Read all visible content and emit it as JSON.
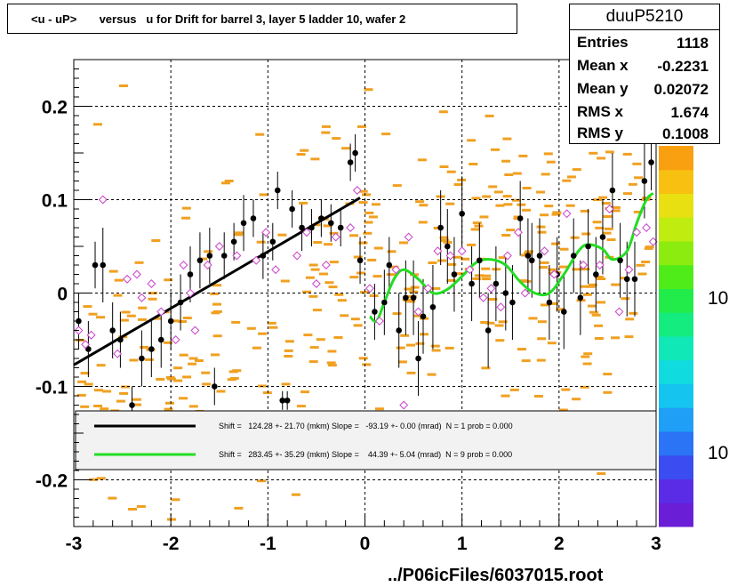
{
  "title": "<u - uP>       versus   u for Drift for barrel 3, layer 5 ladder 10, wafer 2",
  "stats": {
    "name": "duuP5210",
    "rows": [
      {
        "key": "Entries",
        "value": "1118"
      },
      {
        "key": "Mean x",
        "value": "-0.2231"
      },
      {
        "key": "Mean y",
        "value": "0.02072"
      },
      {
        "key": "RMS x",
        "value": "1.674"
      },
      {
        "key": "RMS y",
        "value": "0.1008"
      }
    ]
  },
  "footer": "../P06icFiles/6037015.root",
  "colors": {
    "black_fit": "#000000",
    "green_fit": "#22dd22",
    "marker_open": "#cc44cc",
    "hist_cells": "#f0a020"
  },
  "chart_data": {
    "type": "scatter",
    "xlim": [
      -3,
      3
    ],
    "ylim": [
      -0.25,
      0.25
    ],
    "x_ticks": [
      "-3",
      "-2",
      "-1",
      "0",
      "1",
      "2",
      "3"
    ],
    "y_ticks": [
      "-0.2",
      "-0.1",
      "0",
      "0.1",
      "0.2"
    ],
    "grid": true,
    "palette_labels": [
      "10",
      "10"
    ],
    "legend": [
      {
        "text": "Shift =   124.28 +- 21.70 (mkm) Slope =   -93.19 +- 0.00 (mrad)  N = 1 prob = 0.000",
        "color": "#000000"
      },
      {
        "text": "Shift =   283.45 +- 35.29 (mkm) Slope =    44.39 +- 5.04 (mrad)  N = 9 prob = 0.000",
        "color": "#22dd22"
      }
    ],
    "black_fit_line": {
      "x": [
        -3.0,
        -0.05
      ],
      "y": [
        -0.077,
        0.102
      ]
    },
    "green_fit_curve": {
      "x": [
        0.05,
        0.12,
        0.2,
        0.3,
        0.4,
        0.55,
        0.7,
        0.85,
        1.0,
        1.15,
        1.3,
        1.45,
        1.6,
        1.75,
        1.9,
        2.05,
        2.2,
        2.3,
        2.45,
        2.55,
        2.7,
        2.8,
        2.9,
        2.97
      ],
      "y": [
        -0.025,
        -0.03,
        -0.01,
        0.015,
        0.025,
        0.015,
        0.0,
        0.004,
        0.018,
        0.033,
        0.036,
        0.03,
        0.012,
        0.0,
        0.0,
        0.02,
        0.045,
        0.052,
        0.047,
        0.036,
        0.045,
        0.075,
        0.1,
        0.107
      ]
    },
    "filled_points": [
      {
        "x": -2.95,
        "y": -0.03,
        "e": 0.03
      },
      {
        "x": -2.85,
        "y": -0.06,
        "e": 0.03
      },
      {
        "x": -2.78,
        "y": 0.03,
        "e": 0.025
      },
      {
        "x": -2.7,
        "y": 0.03,
        "e": 0.04
      },
      {
        "x": -2.6,
        "y": -0.04,
        "e": 0.03
      },
      {
        "x": -2.52,
        "y": -0.05,
        "e": 0.03
      },
      {
        "x": -2.4,
        "y": -0.12,
        "e": 0.02
      },
      {
        "x": -2.3,
        "y": -0.07,
        "e": 0.03
      },
      {
        "x": -2.2,
        "y": -0.06,
        "e": 0.03
      },
      {
        "x": -2.1,
        "y": -0.05,
        "e": 0.03
      },
      {
        "x": -2.0,
        "y": -0.03,
        "e": 0.03
      },
      {
        "x": -1.9,
        "y": -0.01,
        "e": 0.03
      },
      {
        "x": -1.8,
        "y": 0.02,
        "e": 0.03
      },
      {
        "x": -1.7,
        "y": 0.035,
        "e": 0.03
      },
      {
        "x": -1.6,
        "y": 0.04,
        "e": 0.03
      },
      {
        "x": -1.55,
        "y": -0.1,
        "e": 0.02
      },
      {
        "x": -1.45,
        "y": 0.04,
        "e": 0.025
      },
      {
        "x": -1.35,
        "y": 0.055,
        "e": 0.02
      },
      {
        "x": -1.25,
        "y": 0.075,
        "e": 0.03
      },
      {
        "x": -1.15,
        "y": 0.08,
        "e": 0.02
      },
      {
        "x": -1.05,
        "y": 0.04,
        "e": 0.025
      },
      {
        "x": -0.95,
        "y": 0.055,
        "e": 0.02
      },
      {
        "x": -0.9,
        "y": 0.11,
        "e": 0.02
      },
      {
        "x": -0.85,
        "y": -0.115,
        "e": 0.01
      },
      {
        "x": -0.8,
        "y": -0.115,
        "e": 0.01
      },
      {
        "x": -0.75,
        "y": 0.09,
        "e": 0.02
      },
      {
        "x": -0.65,
        "y": 0.07,
        "e": 0.025
      },
      {
        "x": -0.55,
        "y": 0.07,
        "e": 0.02
      },
      {
        "x": -0.45,
        "y": 0.08,
        "e": 0.02
      },
      {
        "x": -0.35,
        "y": 0.075,
        "e": 0.02
      },
      {
        "x": -0.25,
        "y": 0.07,
        "e": 0.02
      },
      {
        "x": -0.15,
        "y": 0.14,
        "e": 0.02
      },
      {
        "x": -0.1,
        "y": 0.15,
        "e": 0.02
      },
      {
        "x": -0.05,
        "y": 0.035,
        "e": 0.025
      },
      {
        "x": 0.1,
        "y": -0.02,
        "e": 0.03
      },
      {
        "x": 0.2,
        "y": -0.01,
        "e": 0.035
      },
      {
        "x": 0.25,
        "y": 0.03,
        "e": 0.03
      },
      {
        "x": 0.35,
        "y": -0.04,
        "e": 0.04
      },
      {
        "x": 0.42,
        "y": -0.005,
        "e": 0.04
      },
      {
        "x": 0.5,
        "y": -0.005,
        "e": 0.04
      },
      {
        "x": 0.55,
        "y": -0.07,
        "e": 0.04
      },
      {
        "x": 0.6,
        "y": -0.025,
        "e": 0.04
      },
      {
        "x": 0.7,
        "y": -0.015,
        "e": 0.045
      },
      {
        "x": 0.78,
        "y": 0.07,
        "e": 0.04
      },
      {
        "x": 0.85,
        "y": 0.05,
        "e": 0.04
      },
      {
        "x": 0.92,
        "y": 0.02,
        "e": 0.04
      },
      {
        "x": 1.0,
        "y": 0.085,
        "e": 0.04
      },
      {
        "x": 1.1,
        "y": 0.01,
        "e": 0.04
      },
      {
        "x": 1.18,
        "y": 0.035,
        "e": 0.04
      },
      {
        "x": 1.27,
        "y": -0.04,
        "e": 0.04
      },
      {
        "x": 1.35,
        "y": 0.01,
        "e": 0.04
      },
      {
        "x": 1.45,
        "y": 0.0,
        "e": 0.04
      },
      {
        "x": 1.52,
        "y": -0.01,
        "e": 0.04
      },
      {
        "x": 1.6,
        "y": 0.08,
        "e": 0.04
      },
      {
        "x": 1.68,
        "y": 0.04,
        "e": 0.04
      },
      {
        "x": 1.72,
        "y": 0.035,
        "e": 0.04
      },
      {
        "x": 1.8,
        "y": 0.04,
        "e": 0.04
      },
      {
        "x": 1.9,
        "y": -0.01,
        "e": 0.04
      },
      {
        "x": 1.98,
        "y": 0.02,
        "e": 0.04
      },
      {
        "x": 2.05,
        "y": -0.02,
        "e": 0.04
      },
      {
        "x": 2.15,
        "y": 0.04,
        "e": 0.04
      },
      {
        "x": 2.22,
        "y": -0.005,
        "e": 0.04
      },
      {
        "x": 2.3,
        "y": 0.05,
        "e": 0.04
      },
      {
        "x": 2.38,
        "y": 0.02,
        "e": 0.04
      },
      {
        "x": 2.45,
        "y": 0.06,
        "e": 0.04
      },
      {
        "x": 2.55,
        "y": 0.11,
        "e": 0.04
      },
      {
        "x": 2.63,
        "y": 0.035,
        "e": 0.04
      },
      {
        "x": 2.7,
        "y": 0.015,
        "e": 0.04
      },
      {
        "x": 2.78,
        "y": 0.015,
        "e": 0.04
      },
      {
        "x": 2.88,
        "y": 0.12,
        "e": 0.04
      },
      {
        "x": 2.95,
        "y": 0.14,
        "e": 0.03
      }
    ],
    "open_points": [
      {
        "x": -2.95,
        "y": -0.04
      },
      {
        "x": -2.88,
        "y": -0.055
      },
      {
        "x": -2.82,
        "y": -0.045
      },
      {
        "x": -2.7,
        "y": 0.1
      },
      {
        "x": -2.55,
        "y": -0.065
      },
      {
        "x": -2.45,
        "y": 0.015
      },
      {
        "x": -2.35,
        "y": 0.02
      },
      {
        "x": -2.3,
        "y": -0.005
      },
      {
        "x": -2.2,
        "y": 0.01
      },
      {
        "x": -2.1,
        "y": -0.02
      },
      {
        "x": -1.95,
        "y": -0.05
      },
      {
        "x": -1.87,
        "y": 0.03
      },
      {
        "x": -1.8,
        "y": 0.0
      },
      {
        "x": -1.75,
        "y": -0.04
      },
      {
        "x": -1.62,
        "y": 0.03
      },
      {
        "x": -1.5,
        "y": 0.05
      },
      {
        "x": -1.32,
        "y": 0.04
      },
      {
        "x": -1.12,
        "y": 0.035
      },
      {
        "x": -1.02,
        "y": 0.065
      },
      {
        "x": -0.92,
        "y": 0.025
      },
      {
        "x": -0.7,
        "y": 0.04
      },
      {
        "x": -0.6,
        "y": 0.065
      },
      {
        "x": -0.5,
        "y": 0.01
      },
      {
        "x": -0.4,
        "y": 0.03
      },
      {
        "x": -0.3,
        "y": 0.06
      },
      {
        "x": -0.15,
        "y": 0.07
      },
      {
        "x": -0.08,
        "y": 0.11
      },
      {
        "x": 0.05,
        "y": 0.005
      },
      {
        "x": 0.15,
        "y": -0.03
      },
      {
        "x": 0.32,
        "y": 0.025
      },
      {
        "x": 0.4,
        "y": -0.12
      },
      {
        "x": 0.45,
        "y": 0.06
      },
      {
        "x": 0.55,
        "y": -0.02
      },
      {
        "x": 0.65,
        "y": 0.005
      },
      {
        "x": 0.75,
        "y": 0.045
      },
      {
        "x": 0.88,
        "y": 0.04
      },
      {
        "x": 1.0,
        "y": 0.045
      },
      {
        "x": 1.08,
        "y": 0.025
      },
      {
        "x": 1.22,
        "y": -0.005
      },
      {
        "x": 1.3,
        "y": 0.005
      },
      {
        "x": 1.4,
        "y": -0.015
      },
      {
        "x": 1.47,
        "y": 0.04
      },
      {
        "x": 1.58,
        "y": 0.065
      },
      {
        "x": 1.65,
        "y": 0.0
      },
      {
        "x": 1.85,
        "y": 0.045
      },
      {
        "x": 1.95,
        "y": 0.02
      },
      {
        "x": 2.08,
        "y": 0.085
      },
      {
        "x": 2.25,
        "y": 0.03
      },
      {
        "x": 2.42,
        "y": 0.03
      },
      {
        "x": 2.52,
        "y": 0.09
      },
      {
        "x": 2.62,
        "y": -0.02
      },
      {
        "x": 2.72,
        "y": 0.025
      },
      {
        "x": 2.8,
        "y": 0.065
      },
      {
        "x": 2.9,
        "y": 0.07
      },
      {
        "x": 2.97,
        "y": 0.055
      }
    ]
  }
}
